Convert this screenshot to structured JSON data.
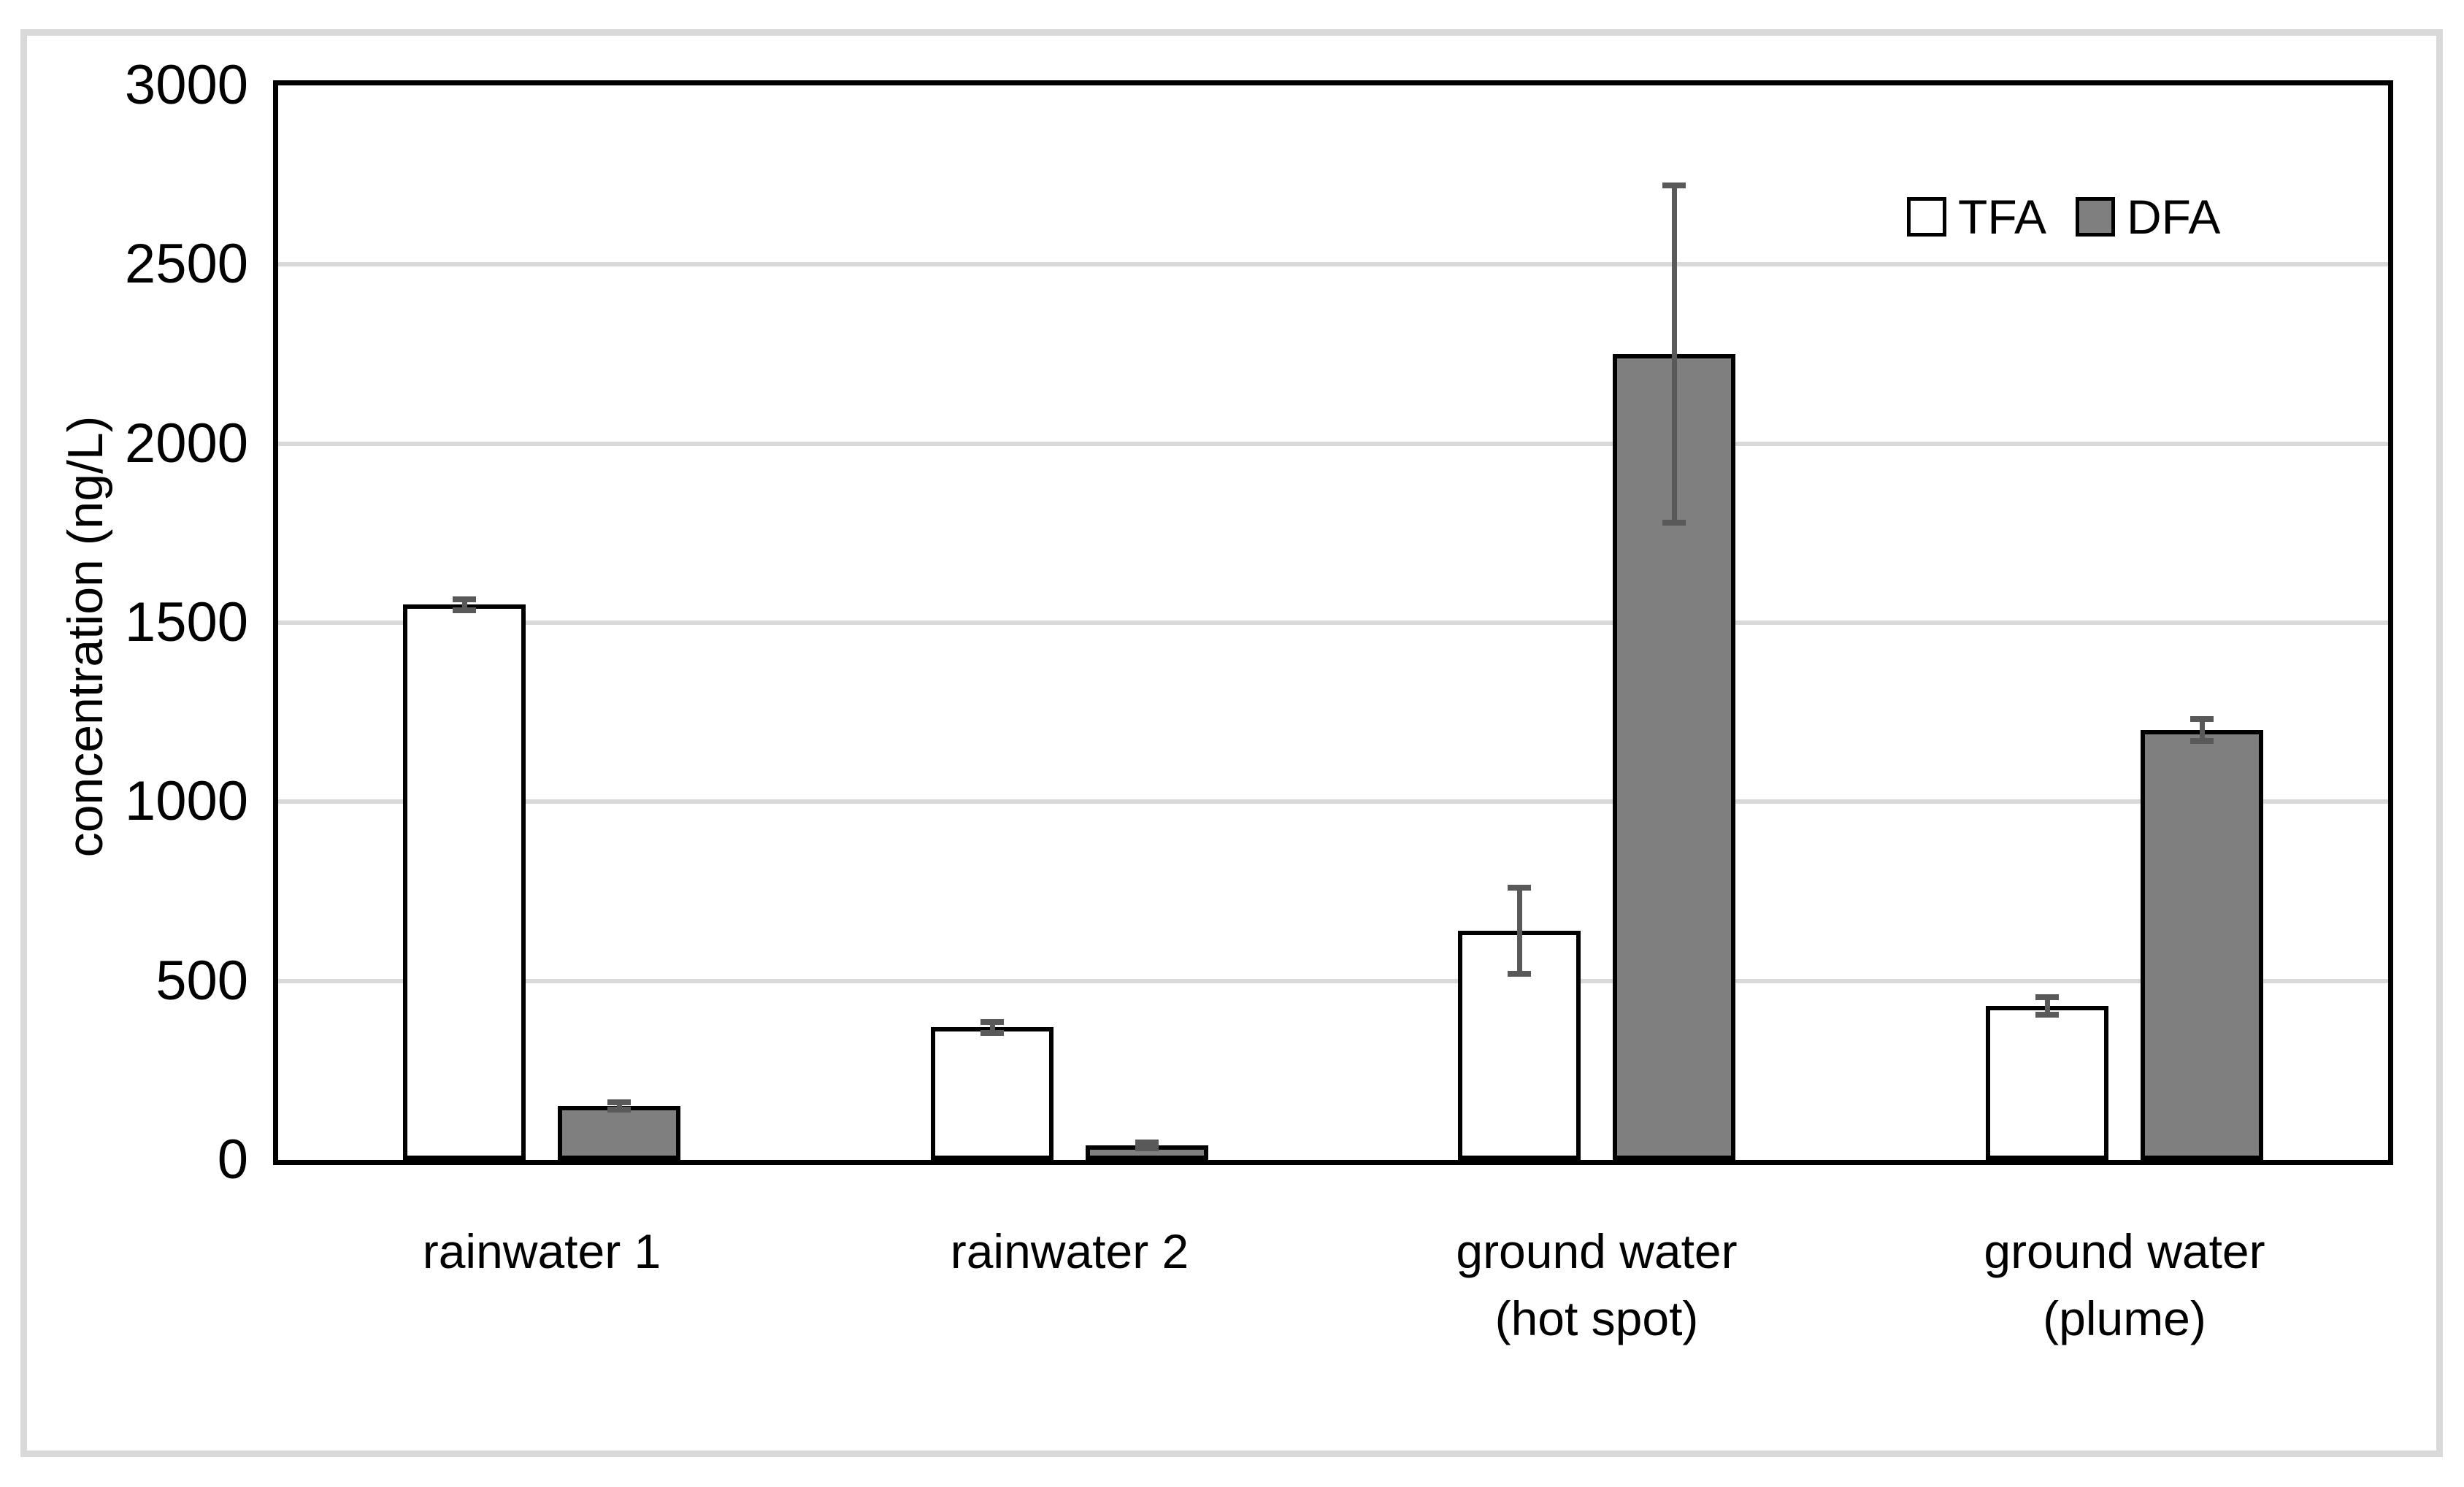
{
  "chart_data": {
    "type": "bar",
    "title": "",
    "xlabel": "",
    "ylabel": "concentration (ng/L)",
    "ylim": [
      0,
      3000
    ],
    "ytick_step": 500,
    "yticks": [
      0,
      500,
      1000,
      1500,
      2000,
      2500,
      3000
    ],
    "grid": true,
    "legend_position": "top-right-inside",
    "categories": [
      "rainwater 1",
      "rainwater 2",
      "ground water (hot spot)",
      "ground water (plume)"
    ],
    "category_lines": [
      [
        "rainwater 1"
      ],
      [
        "rainwater 2"
      ],
      [
        "ground water",
        "(hot spot)"
      ],
      [
        "ground water",
        "(plume)"
      ]
    ],
    "series": [
      {
        "name": "TFA",
        "fill": "#ffffff",
        "values": [
          1550,
          370,
          640,
          430
        ],
        "errors": [
          15,
          15,
          120,
          25
        ]
      },
      {
        "name": "DFA",
        "fill": "#7f7f7f",
        "values": [
          150,
          40,
          2250,
          1200
        ],
        "errors": [
          10,
          8,
          470,
          30
        ]
      }
    ],
    "colors": {
      "bar_border": "#000000",
      "error_bar": "#595959",
      "gridline": "#d9d9d9",
      "axis": "#000000",
      "chart_border": "#d9d9d9",
      "background": "#ffffff",
      "text": "#000000"
    }
  }
}
